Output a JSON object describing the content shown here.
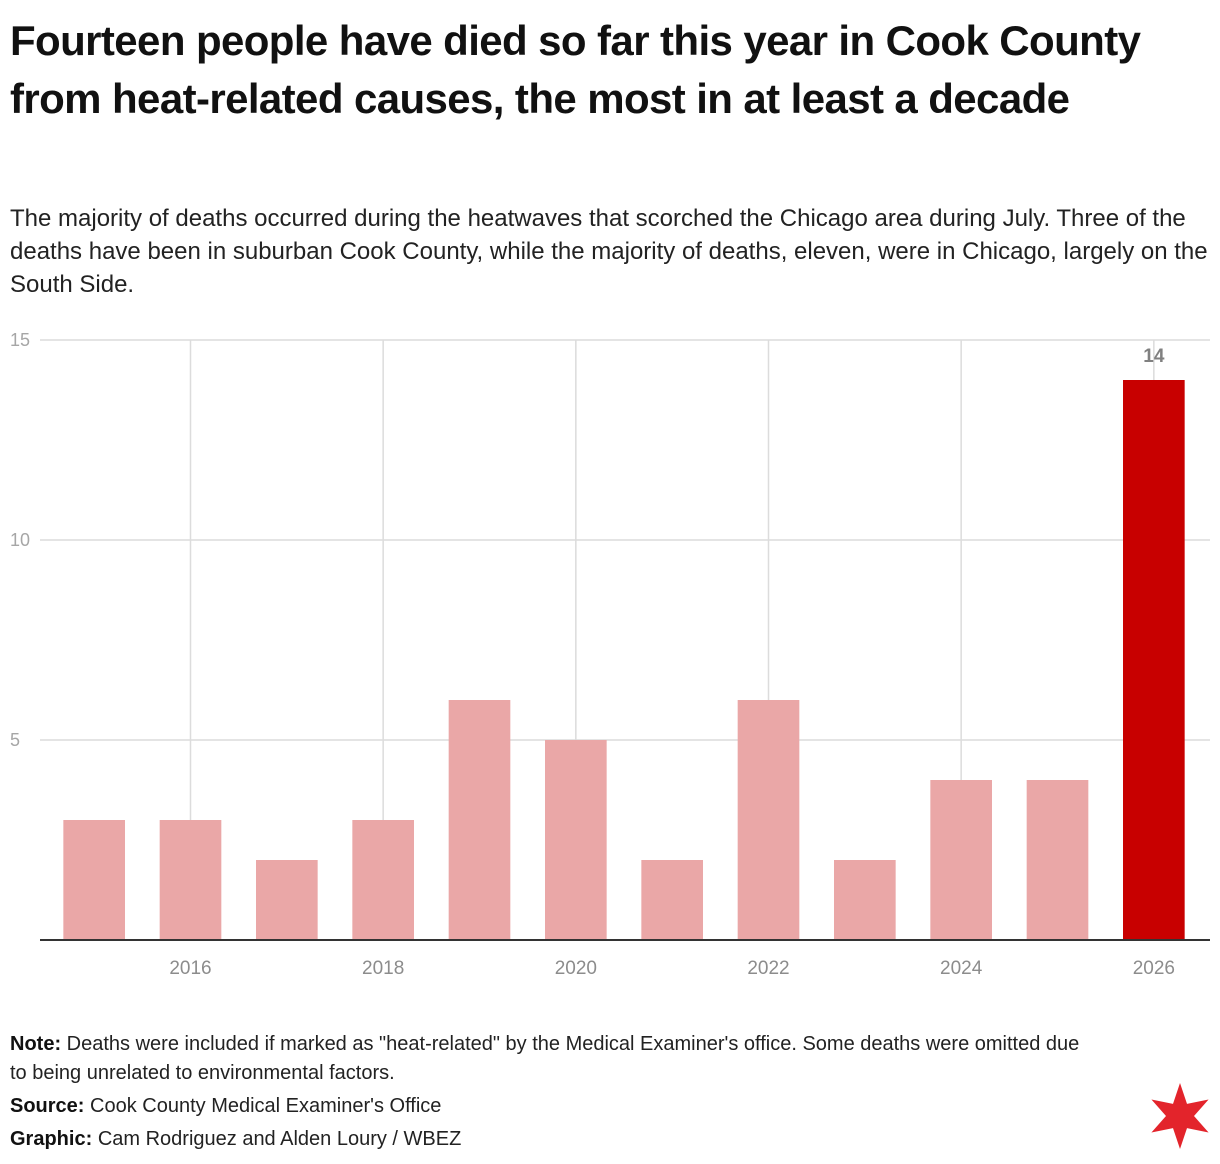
{
  "title": "Fourteen people have died so far this year in Cook County from heat-related causes, the most in at least a decade",
  "subtitle": "The majority of deaths occurred during the heatwaves that scorched the Chicago area during July. Three of the deaths have been in suburban Cook County, while the majority of deaths, eleven, were in Chicago, largely on the South Side.",
  "chart_data": {
    "type": "bar",
    "title": "",
    "xlabel": "",
    "ylabel": "",
    "ylim": [
      0,
      15
    ],
    "yticks": [
      5,
      10,
      15
    ],
    "x": [
      2015,
      2016,
      2017,
      2018,
      2019,
      2020,
      2021,
      2022,
      2023,
      2024,
      2025,
      2026
    ],
    "values": [
      3,
      3,
      2,
      3,
      6,
      5,
      2,
      6,
      2,
      4,
      4,
      14
    ],
    "xticks": [
      "2016",
      "2018",
      "2020",
      "2022",
      "2024",
      "2026"
    ],
    "highlight": {
      "x": 2026,
      "label": "14",
      "color": "#c80000"
    },
    "bar_color": "#eaa7a7",
    "grid": true
  },
  "notes": {
    "note_label": "Note:",
    "note_text": "Deaths were included if marked as \"heat-related\" by the Medical Examiner's office. Some deaths were omitted due to being unrelated to environmental factors.",
    "source_label": "Source:",
    "source_text": "Cook County Medical Examiner's Office",
    "graphic_label": "Graphic:",
    "graphic_text": "Cam Rodriguez and Alden Loury / WBEZ"
  },
  "logo": {
    "icon": "red-star-icon",
    "color": "#e3242b"
  }
}
